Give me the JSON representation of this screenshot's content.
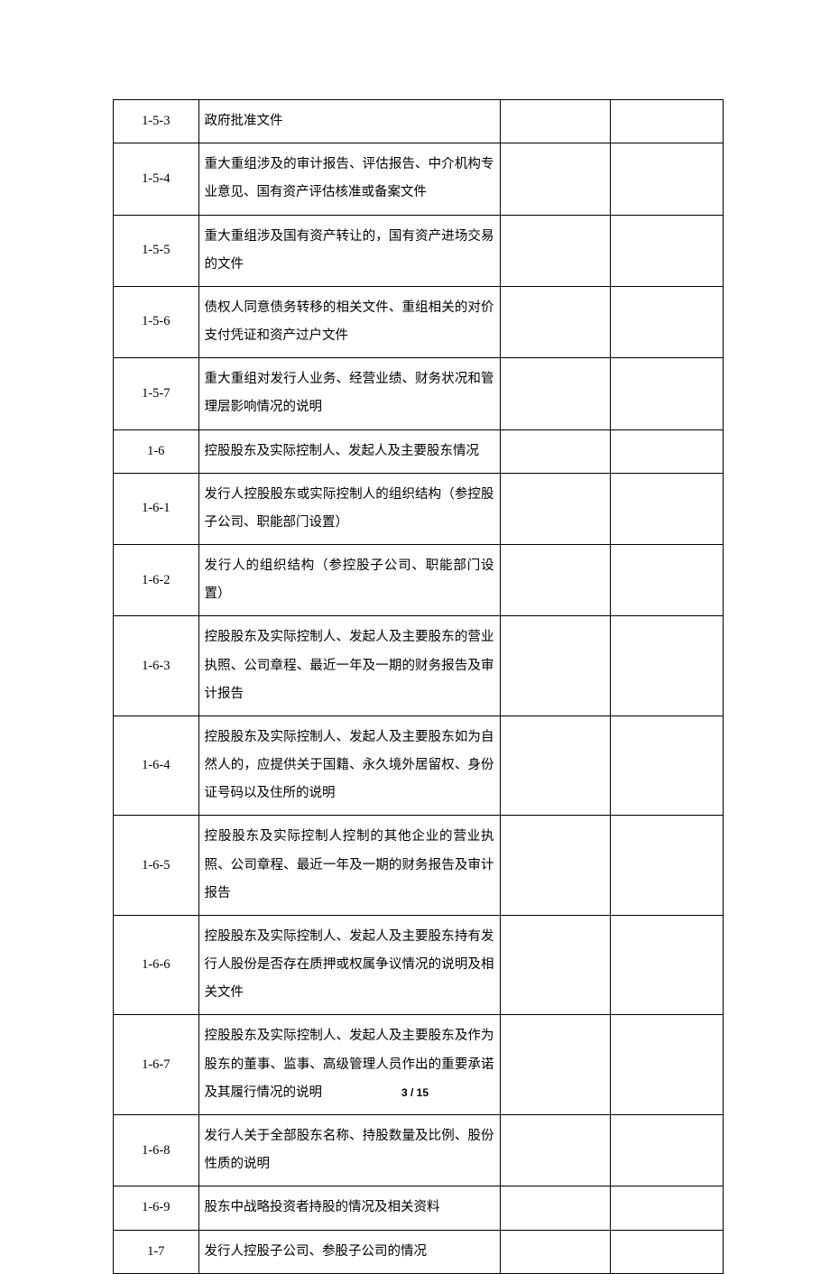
{
  "table": {
    "rows": [
      {
        "index": "1-5-3",
        "desc": "政府批准文件"
      },
      {
        "index": "1-5-4",
        "desc": "重大重组涉及的审计报告、评估报告、中介机构专业意见、国有资产评估核准或备案文件"
      },
      {
        "index": "1-5-5",
        "desc": "重大重组涉及国有资产转让的，国有资产进场交易的文件"
      },
      {
        "index": "1-5-6",
        "desc": "债权人同意债务转移的相关文件、重组相关的对价支付凭证和资产过户文件"
      },
      {
        "index": "1-5-7",
        "desc": "重大重组对发行人业务、经营业绩、财务状况和管理层影响情况的说明"
      },
      {
        "index": "1-6",
        "desc": "控股股东及实际控制人、发起人及主要股东情况"
      },
      {
        "index": "1-6-1",
        "desc": "发行人控股股东或实际控制人的组织结构（参控股子公司、职能部门设置）"
      },
      {
        "index": "1-6-2",
        "desc": "发行人的组织结构（参控股子公司、职能部门设置）"
      },
      {
        "index": "1-6-3",
        "desc": "控股股东及实际控制人、发起人及主要股东的营业执照、公司章程、最近一年及一期的财务报告及审计报告"
      },
      {
        "index": "1-6-4",
        "desc": "控股股东及实际控制人、发起人及主要股东如为自然人的，应提供关于国籍、永久境外居留权、身份证号码以及住所的说明"
      },
      {
        "index": "1-6-5",
        "desc": "控股股东及实际控制人控制的其他企业的营业执照、公司章程、最近一年及一期的财务报告及审计报告"
      },
      {
        "index": "1-6-6",
        "desc": "控股股东及实际控制人、发起人及主要股东持有发行人股份是否存在质押或权属争议情况的说明及相关文件"
      },
      {
        "index": "1-6-7",
        "desc": "控股股东及实际控制人、发起人及主要股东及作为股东的董事、监事、高级管理人员作出的重要承诺及其履行情况的说明"
      },
      {
        "index": "1-6-8",
        "desc": "发行人关于全部股东名称、持股数量及比例、股份性质的说明"
      },
      {
        "index": "1-6-9",
        "desc": "股东中战略投资者持股的情况及相关资料"
      },
      {
        "index": "1-7",
        "desc": "发行人控股子公司、参股子公司的情况"
      }
    ]
  },
  "footer": {
    "page_current": "3",
    "page_separator": " / ",
    "page_total": "15"
  }
}
